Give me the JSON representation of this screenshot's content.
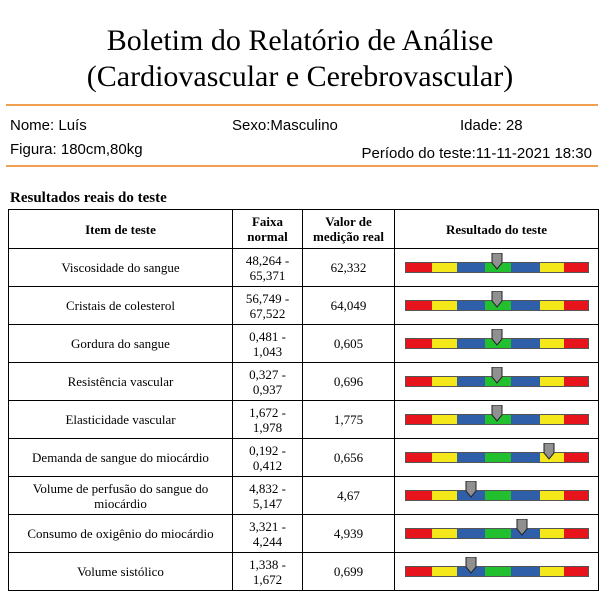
{
  "report": {
    "title_line1": "Boletim do Relatório de Análise",
    "title_line2": "(Cardiovascular e Cerebrovascular)"
  },
  "patient": {
    "name": "Nome: Luís",
    "sex": "Sexo:Masculino",
    "age": "Idade: 28",
    "figure": "Figura: 180cm,80kg",
    "period": "Período do teste:11-11-2021 18:30"
  },
  "section": {
    "title": "Resultados reais do teste"
  },
  "table": {
    "headers": {
      "item": "Item de teste",
      "range": "Faixa normal",
      "value": "Valor de medição real",
      "result": "Resultado do teste"
    },
    "rows": [
      {
        "item": "Viscosidade do sangue",
        "range": "48,264 - 65,371",
        "value": "62,332",
        "level": 0.5
      },
      {
        "item": "Cristais de colesterol",
        "range": "56,749 - 67,522",
        "value": "64,049",
        "level": 0.5
      },
      {
        "item": "Gordura do sangue",
        "range": "0,481 - 1,043",
        "value": "0,605",
        "level": 0.5
      },
      {
        "item": "Resistência vascular",
        "range": "0,327 - 0,937",
        "value": "0,696",
        "level": 0.5
      },
      {
        "item": "Elasticidade vascular",
        "range": "1,672 - 1,978",
        "value": "1,775",
        "level": 0.5
      },
      {
        "item": "Demanda de sangue do miocárdio",
        "range": "0,192 - 0,412",
        "value": "0,656",
        "level": 0.79
      },
      {
        "item": "Volume de perfusão do sangue do miocárdio",
        "range": "4,832 - 5,147",
        "value": "4,67",
        "level": 0.36
      },
      {
        "item": "Consumo de oxigênio do miocárdio",
        "range": "3,321 - 4,244",
        "value": "4,939",
        "level": 0.64
      },
      {
        "item": "Volume sistólico",
        "range": "1,338 - 1,672",
        "value": "0,699",
        "level": 0.36
      }
    ]
  },
  "colors": {
    "red": "#e8141c",
    "yellow": "#f5e81a",
    "blue": "#2f5fa8",
    "green": "#22c02e",
    "rule": "#f0a050",
    "marker": "#909090"
  }
}
